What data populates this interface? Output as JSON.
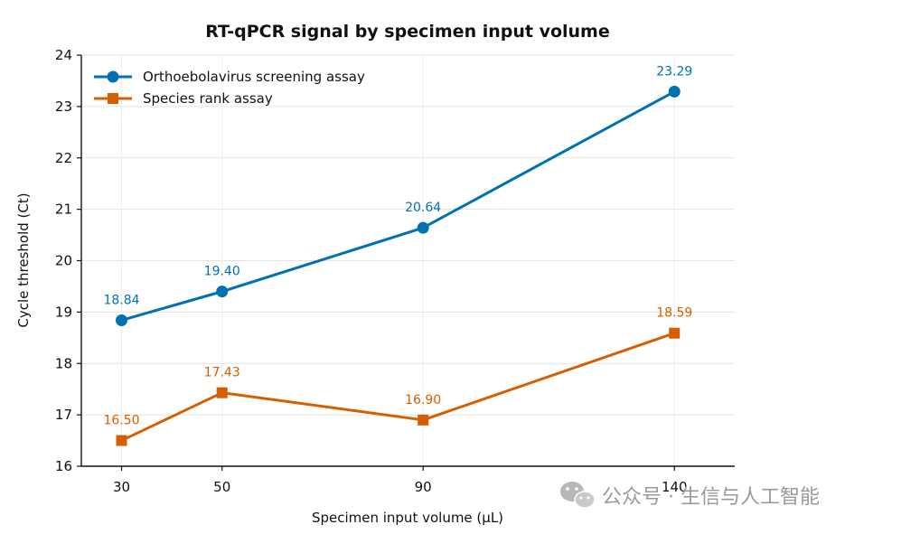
{
  "chart_data": {
    "type": "line",
    "title": "RT-qPCR signal by specimen input volume",
    "xlabel": "Specimen input volume (µL)",
    "ylabel": "Cycle threshold (Ct)",
    "x": [
      30,
      50,
      90,
      140
    ],
    "xticks": [
      "30",
      "50",
      "90",
      "140"
    ],
    "ylim": [
      16,
      24
    ],
    "yticks": [
      "16",
      "17",
      "18",
      "19",
      "20",
      "21",
      "22",
      "23",
      "24"
    ],
    "grid": true,
    "legend_position": "top-left",
    "series": [
      {
        "name": "Orthoebolavirus screening assay",
        "values": [
          18.84,
          19.4,
          20.64,
          23.29
        ],
        "labels": [
          "18.84",
          "19.40",
          "20.64",
          "23.29"
        ],
        "color": "#0072b2",
        "marker": "circle"
      },
      {
        "name": "Species rank assay",
        "values": [
          16.5,
          17.43,
          16.9,
          18.59
        ],
        "labels": [
          "16.50",
          "17.43",
          "16.90",
          "18.59"
        ],
        "color": "#d55e00",
        "marker": "square"
      }
    ]
  },
  "watermark": {
    "text": "公众号 · 生信与人工智能",
    "icon": "wechat-icon"
  }
}
